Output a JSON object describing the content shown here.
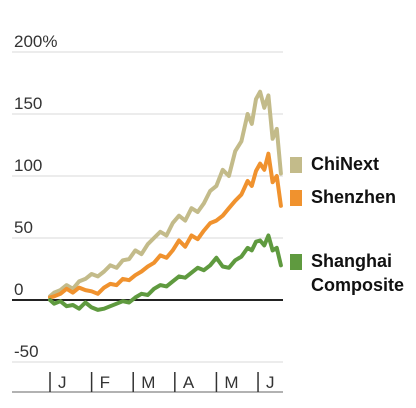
{
  "chart_data": {
    "type": "line",
    "y_tick_labels": [
      "200%",
      "150",
      "100",
      "50",
      "0",
      "-50"
    ],
    "y_ticks": [
      200,
      150,
      100,
      50,
      0,
      -50
    ],
    "ylim": [
      -50,
      200
    ],
    "zero_baseline": true,
    "grid": "horizontal",
    "x_tick_labels": [
      "J",
      "F",
      "M",
      "A",
      "M",
      "J"
    ],
    "x_ticks": [
      0,
      1,
      2,
      3,
      4,
      5
    ],
    "xlim": [
      0,
      5.6
    ],
    "legend_position": "right",
    "series": [
      {
        "name": "ChiNext",
        "color": "#c3bb8a",
        "x": [
          0.0,
          0.1,
          0.25,
          0.4,
          0.55,
          0.7,
          0.85,
          1.0,
          1.15,
          1.3,
          1.45,
          1.6,
          1.75,
          1.9,
          2.05,
          2.2,
          2.35,
          2.5,
          2.65,
          2.8,
          2.95,
          3.1,
          3.25,
          3.4,
          3.55,
          3.7,
          3.85,
          4.0,
          4.15,
          4.3,
          4.45,
          4.6,
          4.75,
          4.85,
          4.95,
          5.05,
          5.15,
          5.25,
          5.35,
          5.45,
          5.55
        ],
        "y": [
          3,
          6,
          8,
          12,
          9,
          15,
          17,
          21,
          19,
          23,
          28,
          26,
          32,
          33,
          40,
          37,
          45,
          50,
          55,
          52,
          62,
          68,
          64,
          74,
          71,
          78,
          88,
          92,
          105,
          100,
          120,
          128,
          150,
          142,
          162,
          168,
          155,
          165,
          130,
          138,
          102
        ]
      },
      {
        "name": "Shenzhen",
        "color": "#f0922e",
        "x": [
          0.0,
          0.1,
          0.25,
          0.4,
          0.55,
          0.7,
          0.85,
          1.0,
          1.15,
          1.3,
          1.45,
          1.6,
          1.75,
          1.9,
          2.05,
          2.2,
          2.35,
          2.5,
          2.65,
          2.8,
          2.95,
          3.1,
          3.25,
          3.4,
          3.55,
          3.7,
          3.85,
          4.0,
          4.15,
          4.3,
          4.45,
          4.6,
          4.75,
          4.85,
          4.95,
          5.05,
          5.15,
          5.25,
          5.35,
          5.45,
          5.55
        ],
        "y": [
          2,
          3,
          5,
          9,
          6,
          10,
          8,
          7,
          5,
          10,
          13,
          12,
          17,
          16,
          20,
          23,
          27,
          30,
          36,
          34,
          40,
          48,
          43,
          52,
          49,
          56,
          62,
          64,
          68,
          74,
          80,
          85,
          96,
          92,
          104,
          110,
          105,
          118,
          95,
          100,
          76
        ]
      },
      {
        "name": "Shanghai Composite",
        "color": "#5f9a3f",
        "x": [
          0.0,
          0.1,
          0.25,
          0.4,
          0.55,
          0.7,
          0.85,
          1.0,
          1.15,
          1.3,
          1.45,
          1.6,
          1.75,
          1.9,
          2.05,
          2.2,
          2.35,
          2.5,
          2.65,
          2.8,
          2.95,
          3.1,
          3.25,
          3.4,
          3.55,
          3.7,
          3.85,
          4.0,
          4.15,
          4.3,
          4.45,
          4.6,
          4.75,
          4.85,
          4.95,
          5.05,
          5.15,
          5.25,
          5.35,
          5.45,
          5.55
        ],
        "y": [
          0,
          -3,
          -1,
          -5,
          -4,
          -7,
          -2,
          -6,
          -8,
          -7,
          -5,
          -3,
          -1,
          -2,
          2,
          5,
          4,
          9,
          12,
          11,
          15,
          19,
          18,
          22,
          26,
          24,
          28,
          34,
          27,
          26,
          32,
          35,
          42,
          40,
          47,
          48,
          44,
          52,
          40,
          42,
          28
        ]
      }
    ]
  }
}
